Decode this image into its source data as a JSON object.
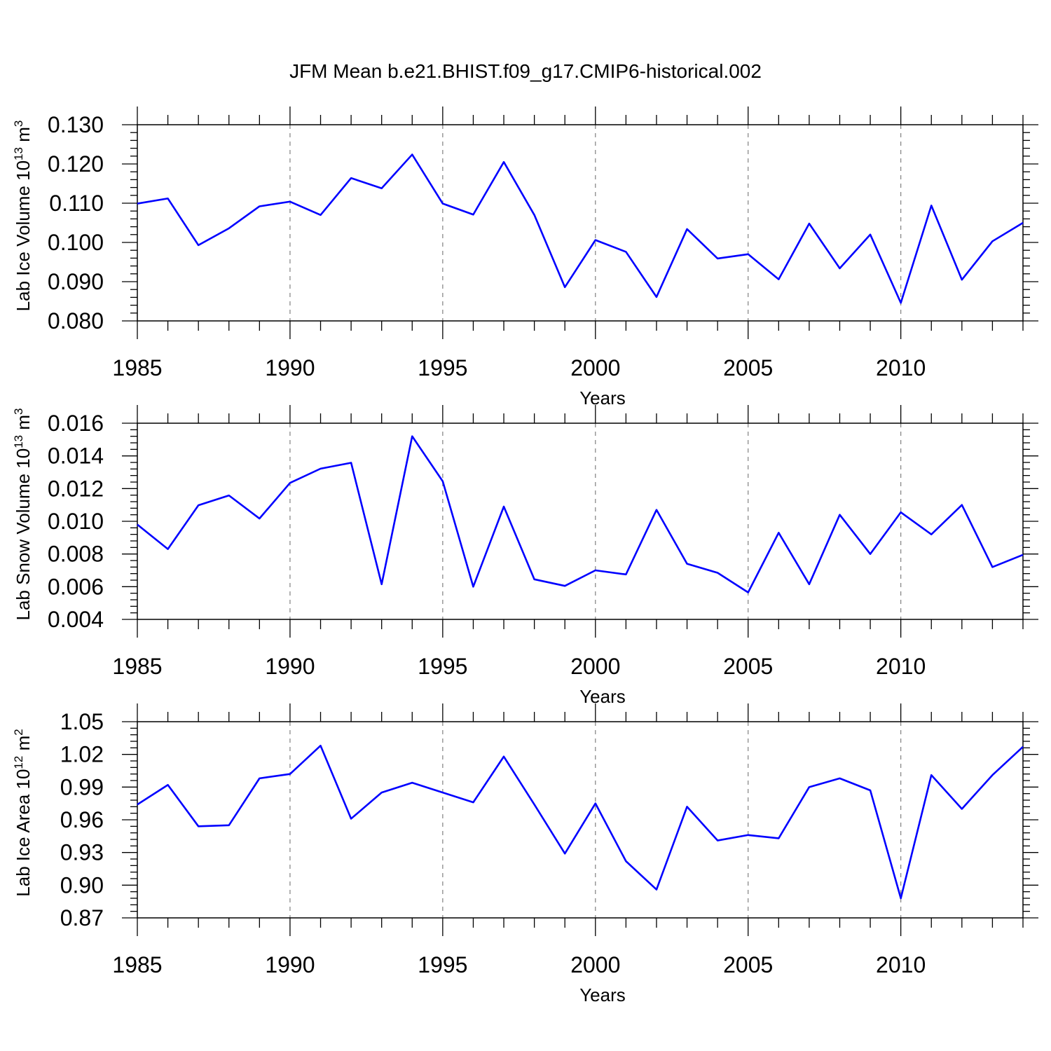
{
  "title": "JFM Mean b.e21.BHIST.f09_g17.CMIP6-historical.002",
  "colors": {
    "series": "#0000ff",
    "axis": "#000000",
    "grid": "#808080"
  },
  "chart_data": [
    {
      "type": "line",
      "xlabel": "Years",
      "ylabel_main": "Lab Ice Volume 10",
      "ylabel_sup1": "13",
      "ylabel_unit": " m",
      "ylabel_sup2": "3",
      "xlim": [
        1985,
        2014
      ],
      "ylim": [
        0.08,
        0.13
      ],
      "yticks": [
        "0.130",
        "0.120",
        "0.110",
        "0.100",
        "0.090",
        "0.080"
      ],
      "yticks_values": [
        0.13,
        0.12,
        0.11,
        0.1,
        0.09,
        0.08
      ],
      "xticks": [
        "1985",
        "1990",
        "1995",
        "2000",
        "2005",
        "2010"
      ],
      "x": [
        1985,
        1986,
        1987,
        1988,
        1989,
        1990,
        1991,
        1992,
        1993,
        1994,
        1995,
        1996,
        1997,
        1998,
        1999,
        2000,
        2001,
        2002,
        2003,
        2004,
        2005,
        2006,
        2007,
        2008,
        2009,
        2010,
        2011,
        2012,
        2013,
        2014
      ],
      "values": [
        0.1099,
        0.1112,
        0.0993,
        0.1036,
        0.1092,
        0.1104,
        0.107,
        0.1164,
        0.1138,
        0.1224,
        0.1099,
        0.1071,
        0.1205,
        0.107,
        0.0886,
        0.1006,
        0.0976,
        0.0861,
        0.1034,
        0.0959,
        0.097,
        0.0906,
        0.1048,
        0.0934,
        0.102,
        0.0846,
        0.1094,
        0.0905,
        0.1003,
        0.105
      ]
    },
    {
      "type": "line",
      "xlabel": "Years",
      "ylabel_main": "Lab Snow Volume 10",
      "ylabel_sup1": "13",
      "ylabel_unit": " m",
      "ylabel_sup2": "3",
      "xlim": [
        1985,
        2014
      ],
      "ylim": [
        0.004,
        0.016
      ],
      "yticks": [
        "0.016",
        "0.014",
        "0.012",
        "0.010",
        "0.008",
        "0.006",
        "0.004"
      ],
      "yticks_values": [
        0.016,
        0.014,
        0.012,
        0.01,
        0.008,
        0.006,
        0.004
      ],
      "xticks": [
        "1985",
        "1990",
        "1995",
        "2000",
        "2005",
        "2010"
      ],
      "x": [
        1985,
        1986,
        1987,
        1988,
        1989,
        1990,
        1991,
        1992,
        1993,
        1994,
        1995,
        1996,
        1997,
        1998,
        1999,
        2000,
        2001,
        2002,
        2003,
        2004,
        2005,
        2006,
        2007,
        2008,
        2009,
        2010,
        2011,
        2012,
        2013,
        2014
      ],
      "values": [
        0.0098,
        0.0083,
        0.01098,
        0.01158,
        0.01017,
        0.01235,
        0.01322,
        0.01358,
        0.00615,
        0.0152,
        0.01245,
        0.006,
        0.0109,
        0.00645,
        0.00605,
        0.007,
        0.00675,
        0.0107,
        0.0074,
        0.00685,
        0.00565,
        0.0093,
        0.00615,
        0.0104,
        0.008,
        0.01055,
        0.0092,
        0.011,
        0.0072,
        0.00795
      ]
    },
    {
      "type": "line",
      "xlabel": "Years",
      "ylabel_main": "Lab Ice Area 10",
      "ylabel_sup1": "12",
      "ylabel_unit": " m",
      "ylabel_sup2": "2",
      "xlim": [
        1985,
        2014
      ],
      "ylim": [
        0.87,
        1.05
      ],
      "yticks": [
        "1.05",
        "1.02",
        "0.99",
        "0.96",
        "0.93",
        "0.90",
        "0.87"
      ],
      "yticks_values": [
        1.05,
        1.02,
        0.99,
        0.96,
        0.93,
        0.9,
        0.87
      ],
      "xticks": [
        "1985",
        "1990",
        "1995",
        "2000",
        "2005",
        "2010"
      ],
      "x": [
        1985,
        1986,
        1987,
        1988,
        1989,
        1990,
        1991,
        1992,
        1993,
        1994,
        1995,
        1996,
        1997,
        1998,
        1999,
        2000,
        2001,
        2002,
        2003,
        2004,
        2005,
        2006,
        2007,
        2008,
        2009,
        2010,
        2011,
        2012,
        2013,
        2014
      ],
      "values": [
        0.974,
        0.992,
        0.954,
        0.955,
        0.998,
        1.002,
        1.028,
        0.961,
        0.985,
        0.994,
        0.985,
        0.976,
        1.018,
        0.974,
        0.929,
        0.975,
        0.922,
        0.896,
        0.972,
        0.941,
        0.946,
        0.943,
        0.99,
        0.998,
        0.987,
        0.888,
        1.001,
        0.97,
        1.001,
        1.027
      ]
    }
  ]
}
